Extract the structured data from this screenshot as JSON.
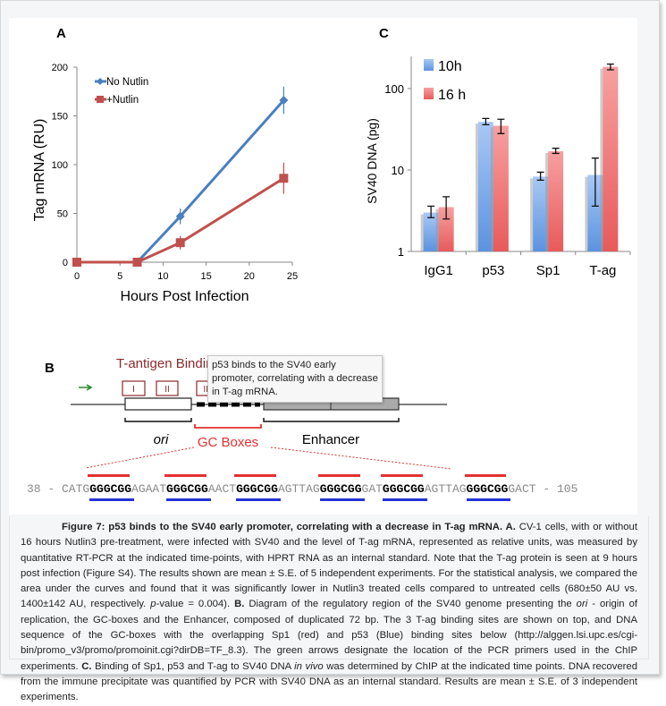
{
  "figure": {
    "panel_a_label": "A",
    "panel_b_label": "B",
    "panel_c_label": "C"
  },
  "chart_data": [
    {
      "type": "line",
      "title": "",
      "xlabel": "Hours Post Infection",
      "ylabel": "Tag mRNA  (RU)",
      "xlim": [
        0,
        25
      ],
      "ylim": [
        0,
        200
      ],
      "xticks": [
        "0",
        "5",
        "10",
        "15",
        "20",
        "25"
      ],
      "yticks": [
        "0",
        "50",
        "100",
        "150",
        "200"
      ],
      "legend_position": "top-left",
      "series": [
        {
          "name": "No Nutlin",
          "color": "#4a7fc1",
          "marker": "diamond",
          "x": [
            0,
            7,
            12,
            24
          ],
          "y": [
            0,
            0,
            47,
            166
          ],
          "err": [
            0,
            0,
            8,
            14
          ]
        },
        {
          "name": "+Nutlin",
          "color": "#c0504d",
          "marker": "square",
          "x": [
            0,
            7,
            12,
            24
          ],
          "y": [
            0,
            0,
            20,
            86
          ],
          "err": [
            0,
            0,
            7,
            16
          ]
        }
      ]
    },
    {
      "type": "bar",
      "title": "",
      "xlabel": "",
      "ylabel": "SV40 DNA (pg)",
      "yscale": "log",
      "ylim": [
        1,
        250
      ],
      "yticks": [
        "1",
        "10",
        "100"
      ],
      "categories": [
        "IgG1",
        "p53",
        "Sp1",
        "T-ag"
      ],
      "legend_position": "top-left",
      "series": [
        {
          "name": "10h",
          "color": "#5b93e0",
          "values": [
            3.0,
            39,
            8.3,
            8.7
          ],
          "err_low": [
            2.6,
            36,
            7.5,
            3.6
          ],
          "err_high": [
            3.6,
            43,
            9.4,
            14
          ]
        },
        {
          "name": "16 h",
          "color": "#e85a5a",
          "values": [
            3.5,
            35,
            17,
            185
          ],
          "err_low": [
            2.5,
            28,
            16,
            170
          ],
          "err_high": [
            4.7,
            42,
            18.5,
            200
          ]
        }
      ]
    }
  ],
  "diagram": {
    "title": "T-antigen Binding",
    "sites": [
      "I",
      "II",
      "III"
    ],
    "ori_label": "ori",
    "gc_label": "GC Boxes",
    "enhancer_label": "Enhancer",
    "sequence": [
      {
        "t": "38 - CATG",
        "gc": false
      },
      {
        "t": "GGGCGG",
        "gc": true
      },
      {
        "t": "AGAAT",
        "gc": false
      },
      {
        "t": "GGGCGG",
        "gc": true
      },
      {
        "t": "AACT",
        "gc": false
      },
      {
        "t": "GGGCGG",
        "gc": true
      },
      {
        "t": "AGTTAG",
        "gc": false
      },
      {
        "t": "GGGCGG",
        "gc": true
      },
      {
        "t": "GAT",
        "gc": false
      },
      {
        "t": "GGGCGG",
        "gc": true
      },
      {
        "t": "AGTTAG",
        "gc": false
      },
      {
        "t": "GGGCGG",
        "gc": true
      },
      {
        "t": "GACT - 105",
        "gc": false
      }
    ],
    "colors": {
      "sp1": "#e53030",
      "p53": "#2433d6",
      "primer": "#2a8a2a",
      "tag": "#8b2a2a"
    }
  },
  "tooltip": "p53 binds to the SV40 early promoter, correlating with a decrease in T-ag mRNA.",
  "caption": [
    {
      "s": "b",
      "t": "Figure 7: p53 binds to the SV40 early promoter, correlating with a decrease in T-ag mRNA. A."
    },
    {
      "s": "",
      "t": " CV-1 cells, with or without 16 hours Nutlin3 pre-treatment, were infected with SV40 and the level of T-ag mRNA, represented as relative units, was measured by quantitative RT-PCR at the indicated time-points, with HPRT RNA as an internal standard. Note that the T-ag protein is seen at 9 hours post infection (Figure S4). The results shown are mean ± S.E. of 5 independent experiments. For the statistical analysis, we compared the area under the curves and found that it was significantly lower in Nutlin3 treated cells compared to untreated cells (680±50 AU vs. 1400±142 AU, respectively. "
    },
    {
      "s": "i",
      "t": "p"
    },
    {
      "s": "",
      "t": "-value = 0.004). "
    },
    {
      "s": "b",
      "t": "B."
    },
    {
      "s": "",
      "t": " Diagram of the regulatory region of the SV40 genome presenting the "
    },
    {
      "s": "i",
      "t": "ori"
    },
    {
      "s": "",
      "t": " - origin of replication, the GC-boxes and the Enhancer, composed of duplicated 72 bp. The 3 T-ag binding sites are shown on top, and DNA sequence of the GC-boxes with the overlapping Sp1 (red) and p53 (Blue) binding sites below (http://alggen.lsi.upc.es/cgi-bin/promo_v3/promo/promoinit.cgi?dirDB=TF_8.3). The green arrows designate the location of the PCR primers used in the ChIP experiments. "
    },
    {
      "s": "b",
      "t": "C."
    },
    {
      "s": "",
      "t": " Binding of Sp1, p53 and T-ag to SV40 DNA "
    },
    {
      "s": "i",
      "t": "in vivo"
    },
    {
      "s": "",
      "t": " was determined by ChIP at the indicated time points. DNA recovered from the immune precipitate was quantified by PCR with SV40 DNA as an internal standard. Results are mean ± S.E. of 3 independent experiments."
    }
  ]
}
